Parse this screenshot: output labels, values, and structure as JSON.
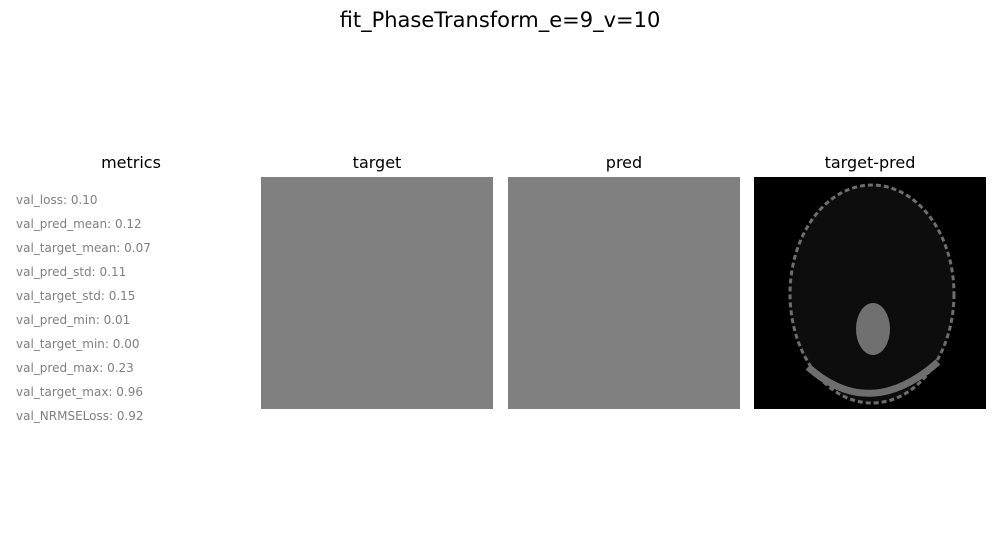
{
  "figure": {
    "title": "fit_PhaseTransform_e=9_v=10"
  },
  "panels": {
    "metrics_title": "metrics",
    "target_title": "target",
    "pred_title": "pred",
    "diff_title": "target-pred"
  },
  "metrics": [
    "val_loss: 0.10",
    "val_pred_mean: 0.12",
    "val_target_mean: 0.07",
    "val_pred_std: 0.11",
    "val_target_std: 0.15",
    "val_pred_min: 0.01",
    "val_target_min: 0.00",
    "val_pred_max: 0.23",
    "val_target_max: 0.96",
    "val_NRMSELoss: 0.92"
  ],
  "colors": {
    "uniform_gray": "#808080",
    "diff_background": "#000000",
    "ellipse_fill": "#0d0d0d",
    "ellipse_rim": "#6e6e6e",
    "inner_blob": "#707070"
  }
}
